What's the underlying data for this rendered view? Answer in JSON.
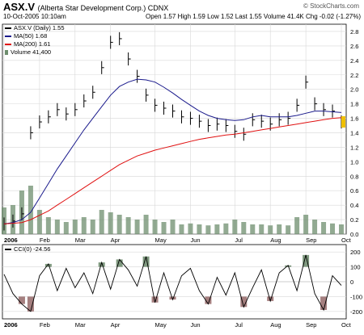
{
  "header": {
    "symbol": "ASX.V",
    "company": "(Alberta Star Development Corp.) CDNX",
    "copyright": "© StockCharts.com",
    "date": "10-Oct-2005 10:10am",
    "open": "Open 1.57",
    "high": "High 1.59",
    "low": "Low 1.52",
    "last": "Last 1.55",
    "volume": "Volume 41.4K",
    "change": "Chg -0.02 (-1.27%)"
  },
  "legend": {
    "main": "ASX.V (Daily) 1.55",
    "ma50": "MA(50) 1.68",
    "ma200": "MA(200) 1.61",
    "volume": "Volume 41,400"
  },
  "cci_legend": "CCI(0) -24.56",
  "colors": {
    "ma50": "#1a1a8c",
    "ma200": "#e01010",
    "volume": "#6e8e6e",
    "cci_fill": "#5f7f5f",
    "cci_neg_fill": "#8e5f5f",
    "price": "#000000",
    "grid": "#d8d8d8",
    "last_marker": "#f0c000"
  },
  "chart_data": [
    {
      "type": "line",
      "title": "ASX.V (Daily) 1.55",
      "x_tick_labels": [
        "2006",
        "Feb",
        "Mar",
        "Apr",
        "May",
        "Jun",
        "Jul",
        "Aug",
        "Sep",
        "Oct"
      ],
      "y_tick_labels": [
        "0.0",
        "0.2",
        "0.4",
        "0.6",
        "0.8",
        "1.0",
        "1.2",
        "1.4",
        "1.6",
        "1.8",
        "2.0",
        "2.2",
        "2.4",
        "2.6",
        "2.8"
      ],
      "ylim": [
        0,
        2.9
      ],
      "x": [
        "Jan-02",
        "Jan-16",
        "Jan-30",
        "Feb-06",
        "Feb-13",
        "Feb-20",
        "Feb-27",
        "Mar-06",
        "Mar-13",
        "Mar-20",
        "Mar-27",
        "Apr-03",
        "Apr-10",
        "Apr-17",
        "Apr-24",
        "May-01",
        "May-08",
        "May-15",
        "May-22",
        "May-29",
        "Jun-05",
        "Jun-12",
        "Jun-19",
        "Jun-26",
        "Jul-03",
        "Jul-10",
        "Jul-17",
        "Jul-24",
        "Jul-31",
        "Aug-07",
        "Aug-14",
        "Aug-21",
        "Aug-28",
        "Sep-04",
        "Sep-11",
        "Sep-18",
        "Sep-25",
        "Oct-02",
        "Oct-10"
      ],
      "series": [
        {
          "name": "ASX.V",
          "values": [
            0.14,
            0.18,
            0.28,
            1.4,
            1.55,
            1.62,
            1.72,
            1.66,
            1.72,
            1.84,
            1.96,
            2.3,
            2.65,
            2.7,
            2.42,
            2.18,
            1.92,
            1.78,
            1.74,
            1.7,
            1.62,
            1.6,
            1.56,
            1.5,
            1.52,
            1.5,
            1.42,
            1.38,
            1.58,
            1.56,
            1.52,
            1.58,
            1.6,
            1.78,
            2.1,
            1.8,
            1.72,
            1.7,
            1.55
          ]
        },
        {
          "name": "MA(50)",
          "values": [
            0.14,
            0.16,
            0.2,
            0.3,
            0.5,
            0.7,
            0.9,
            1.08,
            1.26,
            1.44,
            1.6,
            1.76,
            1.92,
            2.04,
            2.1,
            2.14,
            2.13,
            2.1,
            2.03,
            1.95,
            1.86,
            1.78,
            1.7,
            1.64,
            1.6,
            1.58,
            1.57,
            1.58,
            1.62,
            1.64,
            1.62,
            1.62,
            1.62,
            1.64,
            1.67,
            1.7,
            1.7,
            1.69,
            1.68
          ]
        },
        {
          "name": "MA(200)",
          "values": [
            0.14,
            0.15,
            0.16,
            0.2,
            0.26,
            0.32,
            0.4,
            0.48,
            0.56,
            0.64,
            0.72,
            0.8,
            0.88,
            0.96,
            1.02,
            1.08,
            1.12,
            1.16,
            1.19,
            1.22,
            1.25,
            1.28,
            1.31,
            1.33,
            1.35,
            1.37,
            1.38,
            1.4,
            1.42,
            1.44,
            1.46,
            1.48,
            1.5,
            1.52,
            1.54,
            1.56,
            1.58,
            1.6,
            1.61
          ]
        }
      ]
    },
    {
      "type": "line",
      "title": "CCI(0) -24.56",
      "y_tick_labels": [
        "200",
        "100",
        "0",
        "-100",
        "-200"
      ],
      "ylim": [
        -250,
        250
      ],
      "series": [
        {
          "name": "CCI",
          "values": [
            50,
            -80,
            -150,
            -200,
            40,
            120,
            -60,
            90,
            -40,
            60,
            -80,
            130,
            -50,
            150,
            80,
            -30,
            170,
            -140,
            60,
            -120,
            40,
            90,
            -60,
            -150,
            30,
            -90,
            60,
            -170,
            -40,
            80,
            -130,
            60,
            110,
            -60,
            180,
            -80,
            -190,
            40,
            -25
          ]
        }
      ]
    }
  ]
}
